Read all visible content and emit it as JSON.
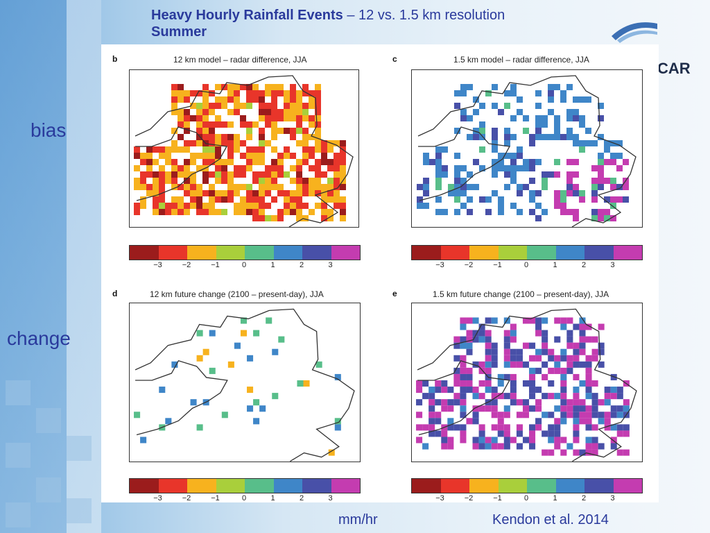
{
  "slide": {
    "title_bold": "Heavy Hourly Rainfall Events",
    "title_rest": " – 12 vs. 1.5 km resolution",
    "subtitle": "Summer",
    "logo_text": "CAR",
    "row_labels": [
      "bias",
      "change"
    ],
    "unit_label": "mm/hr",
    "citation": "Kendon et al. 2014"
  },
  "panels": [
    {
      "letter": "b",
      "title": "12 km model – radar difference, JJA",
      "pattern": "warm_dense"
    },
    {
      "letter": "c",
      "title": "1.5 km model – radar difference, JJA",
      "pattern": "cool_mixed"
    },
    {
      "letter": "d",
      "title": "12 km future change (2100 – present-day), JJA",
      "pattern": "sparse"
    },
    {
      "letter": "e",
      "title": "1.5 km future change (2100 – present-day), JJA",
      "pattern": "cool_dense"
    }
  ],
  "colorbar": {
    "colors": [
      "#9b1c1c",
      "#e8352a",
      "#f7b21e",
      "#a9cf3b",
      "#58be8a",
      "#3f86c8",
      "#4850a8",
      "#c43cb0"
    ],
    "tick_labels": [
      "−3",
      "−2",
      "−1",
      "0",
      "1",
      "2",
      "3"
    ]
  }
}
